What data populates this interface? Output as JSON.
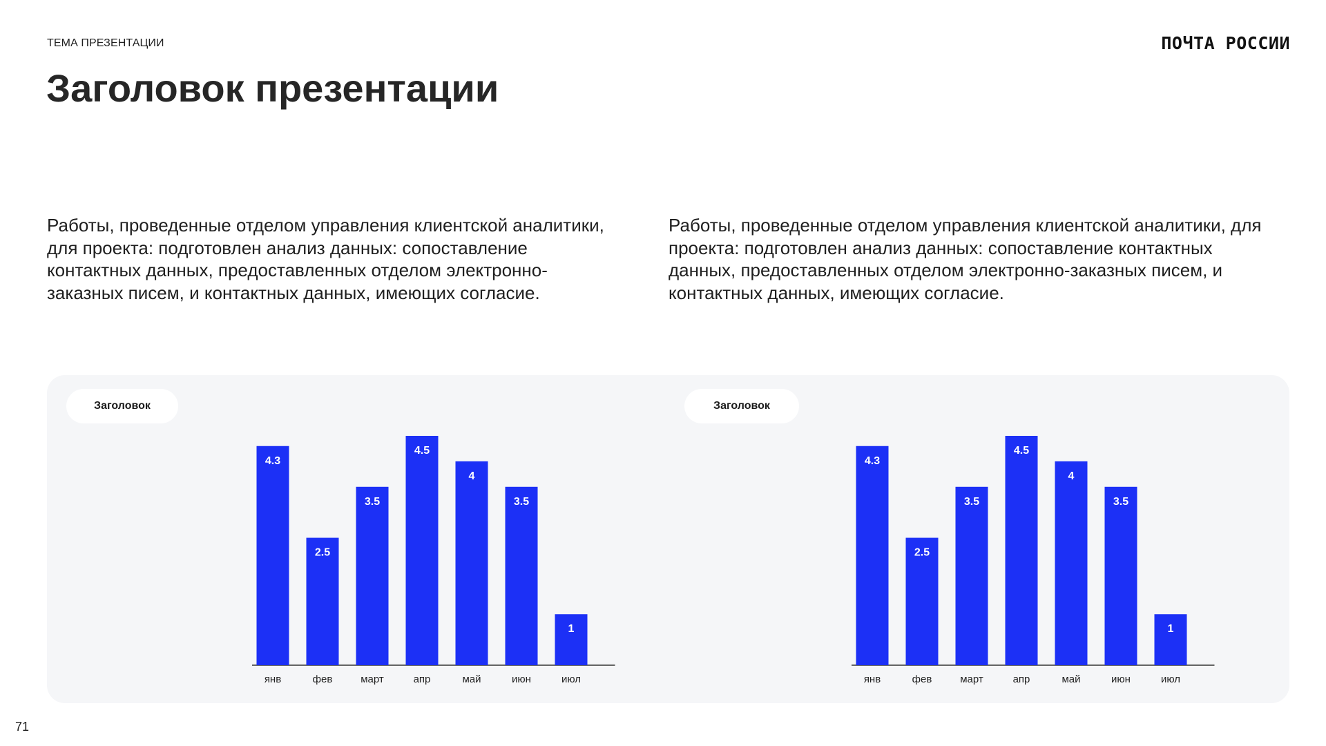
{
  "header": {
    "topic": "ТЕМА ПРЕЗЕНТАЦИИ",
    "logo_text": "ПОЧТА РОССИИ",
    "title": "Заголовок презентации"
  },
  "body": {
    "left_text": "Работы, проведенные отделом управления клиентской аналитики, для проекта: подготовлен анализ данных: сопоставление контактных данных, предоставленных отделом электронно-заказных писем, и контактных данных, имеющих согласие.",
    "right_text": "Работы, проведенные отделом управления клиентской аналитики, для проекта: подготовлен анализ данных: сопоставление контактных данных, предоставленных отделом электронно-заказных писем, и контактных данных, имеющих согласие."
  },
  "footer": {
    "page_number": "71"
  },
  "colors": {
    "bar": "#1c30f6",
    "panel": "#f5f6f8",
    "pill": "#ffffff"
  },
  "chart_data": [
    {
      "type": "bar",
      "title": "Заголовок",
      "categories": [
        "янв",
        "фев",
        "март",
        "апр",
        "май",
        "июн",
        "июл"
      ],
      "values": [
        4.3,
        2.5,
        3.5,
        4.5,
        4,
        3.5,
        1
      ],
      "value_labels": [
        "4.3",
        "2.5",
        "3.5",
        "4.5",
        "4",
        "3.5",
        "1"
      ],
      "ylim": [
        0,
        4.5
      ],
      "grid": false,
      "data_labels": "inside-top"
    },
    {
      "type": "bar",
      "title": "Заголовок",
      "categories": [
        "янв",
        "фев",
        "март",
        "апр",
        "май",
        "июн",
        "июл"
      ],
      "values": [
        4.3,
        2.5,
        3.5,
        4.5,
        4,
        3.5,
        1
      ],
      "value_labels": [
        "4.3",
        "2.5",
        "3.5",
        "4.5",
        "4",
        "3.5",
        "1"
      ],
      "ylim": [
        0,
        4.5
      ],
      "grid": false,
      "data_labels": "inside-top"
    }
  ]
}
